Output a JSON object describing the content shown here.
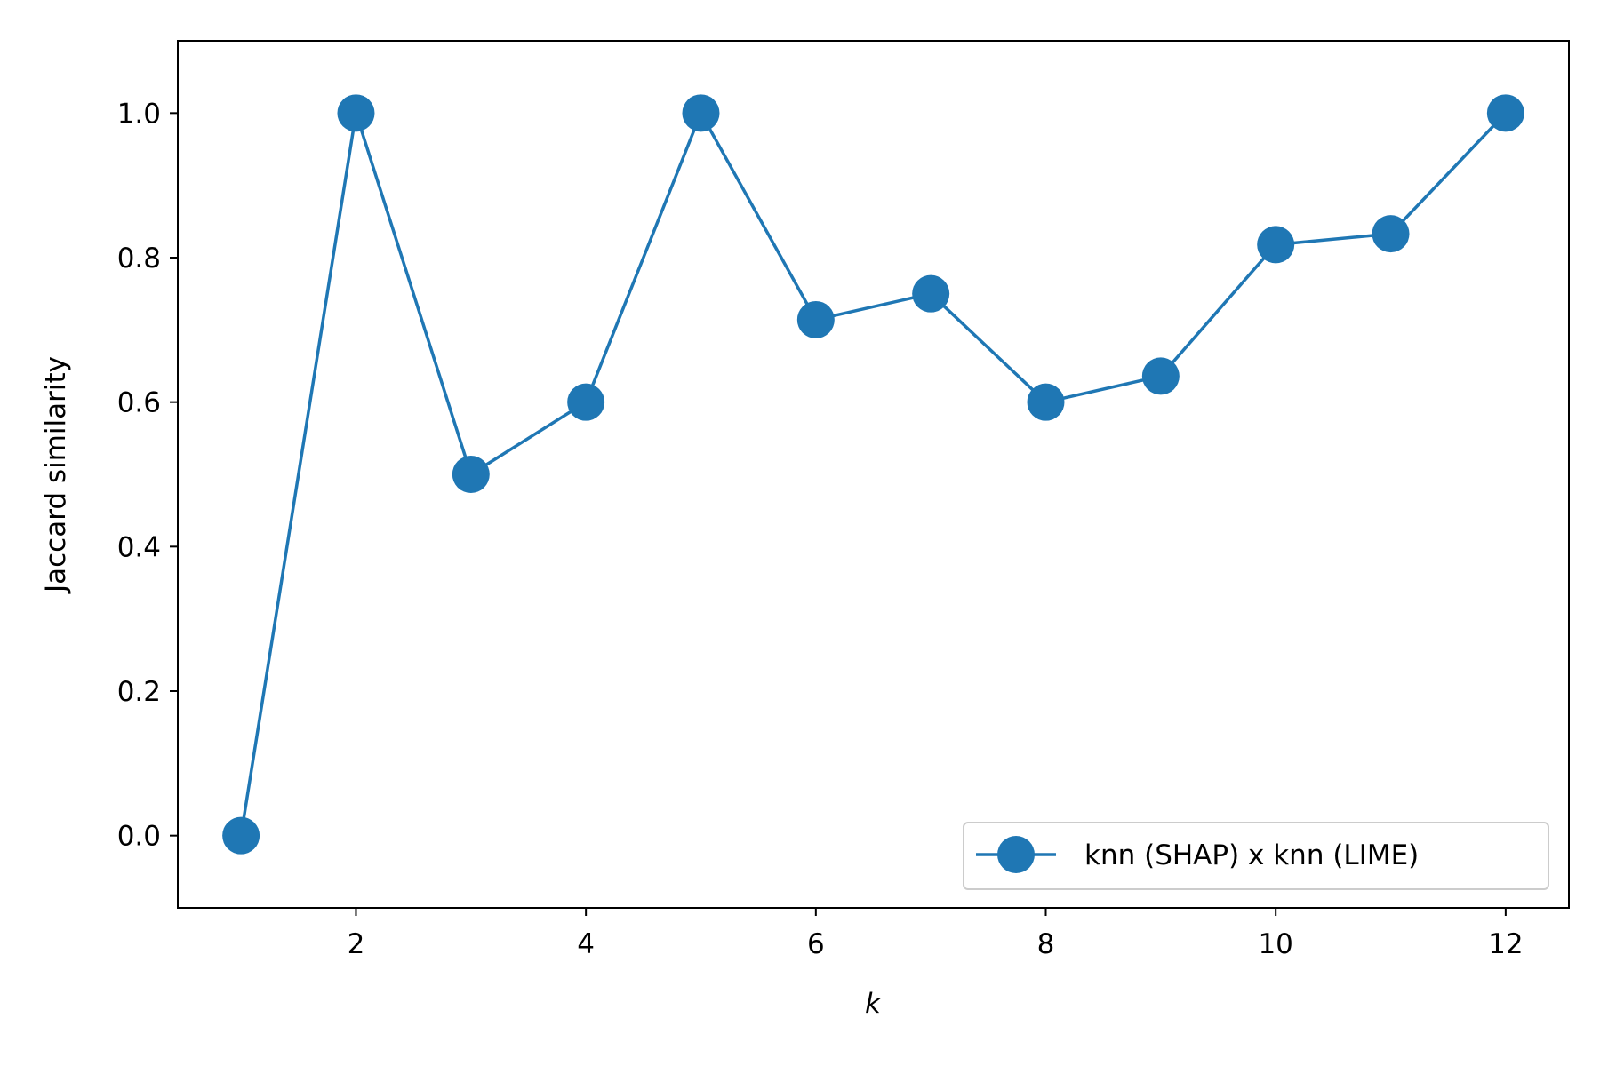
{
  "chart_data": {
    "type": "line",
    "title": "",
    "xlabel": "k",
    "ylabel": "Jaccard similarity",
    "x": [
      1,
      2,
      3,
      4,
      5,
      6,
      7,
      8,
      9,
      10,
      11,
      12
    ],
    "series": [
      {
        "name": "knn (SHAP) x knn (LIME)",
        "values": [
          0.0,
          1.0,
          0.5,
          0.6,
          1.0,
          0.714,
          0.75,
          0.6,
          0.636,
          0.818,
          0.833,
          1.0
        ],
        "color": "#1f77b4",
        "marker": "circle"
      }
    ],
    "xlim": [
      0.45,
      12.55
    ],
    "ylim": [
      -0.1,
      1.1
    ],
    "xticks": [
      2,
      4,
      6,
      8,
      10,
      12
    ],
    "xtick_labels": [
      "2",
      "4",
      "6",
      "8",
      "10",
      "12"
    ],
    "yticks": [
      0.0,
      0.2,
      0.4,
      0.6,
      0.8,
      1.0
    ],
    "ytick_labels": [
      "0.0",
      "0.2",
      "0.4",
      "0.6",
      "0.8",
      "1.0"
    ],
    "grid": false,
    "legend_position": "lower-right"
  }
}
